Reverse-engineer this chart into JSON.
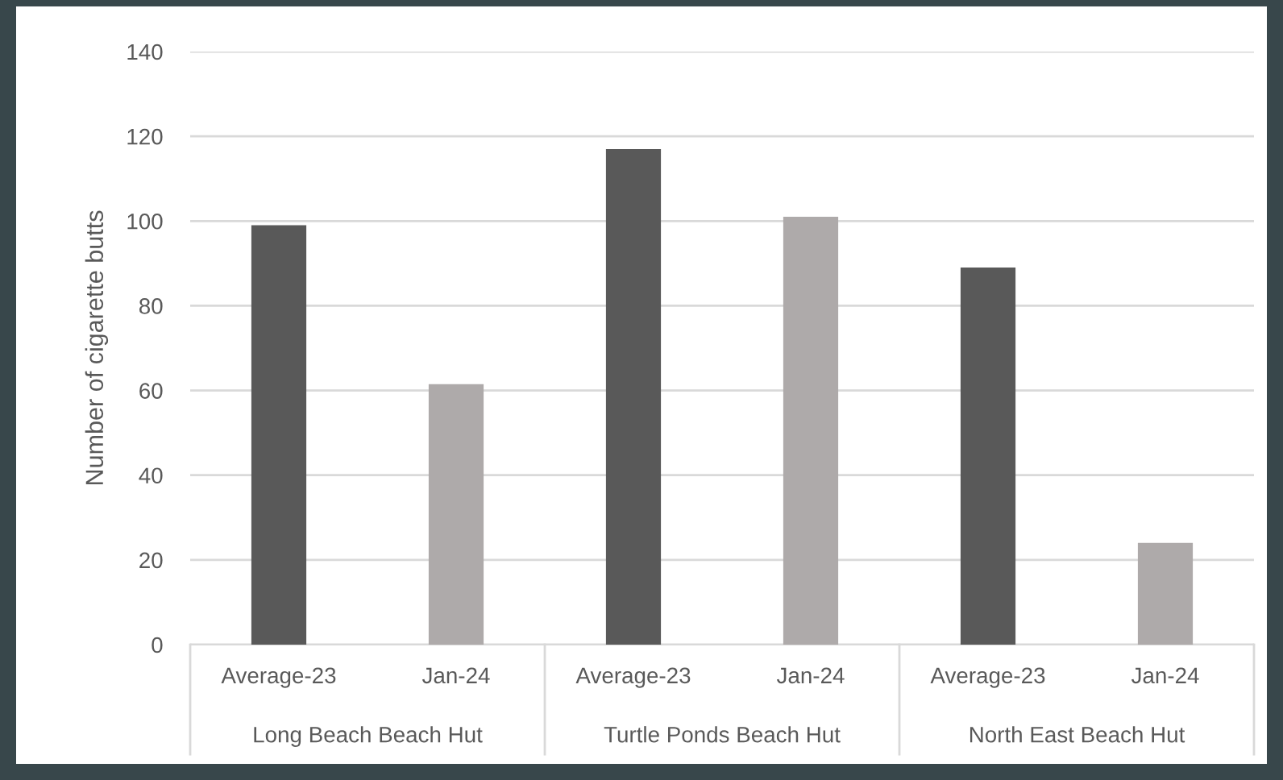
{
  "chart_data": {
    "type": "bar",
    "ylabel": "Number of cigarette butts",
    "categories": [
      "Average-23",
      "Jan-24",
      "Average-23",
      "Jan-24",
      "Average-23",
      "Jan-24"
    ],
    "values": [
      99,
      61.5,
      117,
      101,
      89,
      24
    ],
    "colors": [
      "#595959",
      "#aeaaaa",
      "#595959",
      "#aeaaaa",
      "#595959",
      "#aeaaaa"
    ],
    "annotations": [
      "Long Beach Beach Hut",
      "Turtle Ponds Beach Hut",
      "North East Beach Hut"
    ],
    "ylim": [
      0,
      140
    ],
    "yticks": [
      0,
      20,
      40,
      60,
      80,
      100,
      120,
      140
    ],
    "grid": "y",
    "legend": false
  }
}
